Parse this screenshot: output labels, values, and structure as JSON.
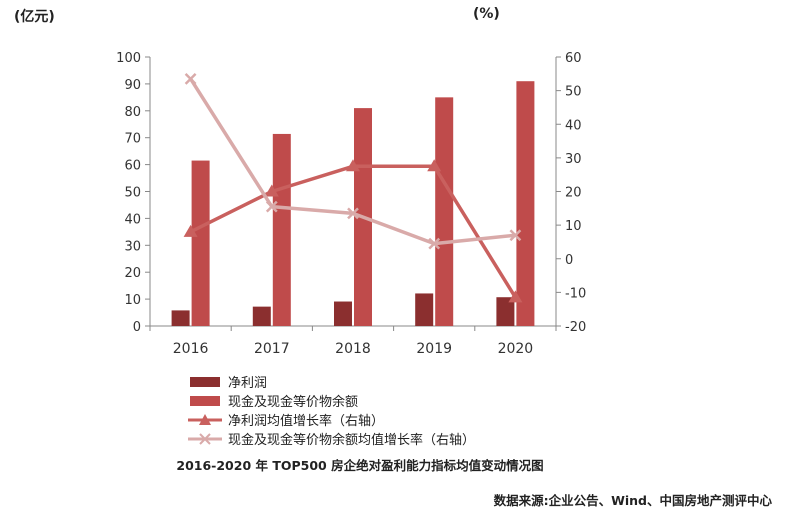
{
  "units": {
    "left": "(亿元)",
    "right": "(%)"
  },
  "chart_data": {
    "type": "bar+line",
    "categories": [
      "2016",
      "2017",
      "2018",
      "2019",
      "2020"
    ],
    "left_axis": {
      "min": 0,
      "max": 100,
      "step": 10,
      "ticks": [
        "0",
        "10",
        "20",
        "30",
        "40",
        "50",
        "60",
        "70",
        "80",
        "90",
        "100"
      ]
    },
    "right_axis": {
      "min": -20,
      "max": 60,
      "step": 10,
      "ticks": [
        "-20",
        "-10",
        "0",
        "10",
        "20",
        "30",
        "40",
        "50",
        "60"
      ]
    },
    "series": [
      {
        "name": "净利润",
        "kind": "bar",
        "axis": "left",
        "color": "#8b2f2f",
        "values": [
          5.8,
          7.2,
          9.1,
          12.1,
          10.7
        ]
      },
      {
        "name": "现金及现金等价物余额",
        "kind": "bar",
        "axis": "left",
        "color": "#bf4b4b",
        "values": [
          61.5,
          71.4,
          81.0,
          85.0,
          91.0
        ]
      },
      {
        "name": "净利润均值增长率（右轴）",
        "kind": "line",
        "axis": "right",
        "marker": "triangle",
        "color": "#c9605e",
        "values": [
          8,
          20,
          27.5,
          27.5,
          -11.5
        ]
      },
      {
        "name": "现金及现金等价物余额均值增长率（右轴）",
        "kind": "line",
        "axis": "right",
        "marker": "x",
        "color": "#d9aaa9",
        "values": [
          53.5,
          15.5,
          13.5,
          4.5,
          7
        ]
      }
    ]
  },
  "caption": "2016-2020 年 TOP500 房企绝对盈利能力指标均值变动情况图",
  "source": "数据来源:企业公告、Wind、中国房地产测评中心"
}
